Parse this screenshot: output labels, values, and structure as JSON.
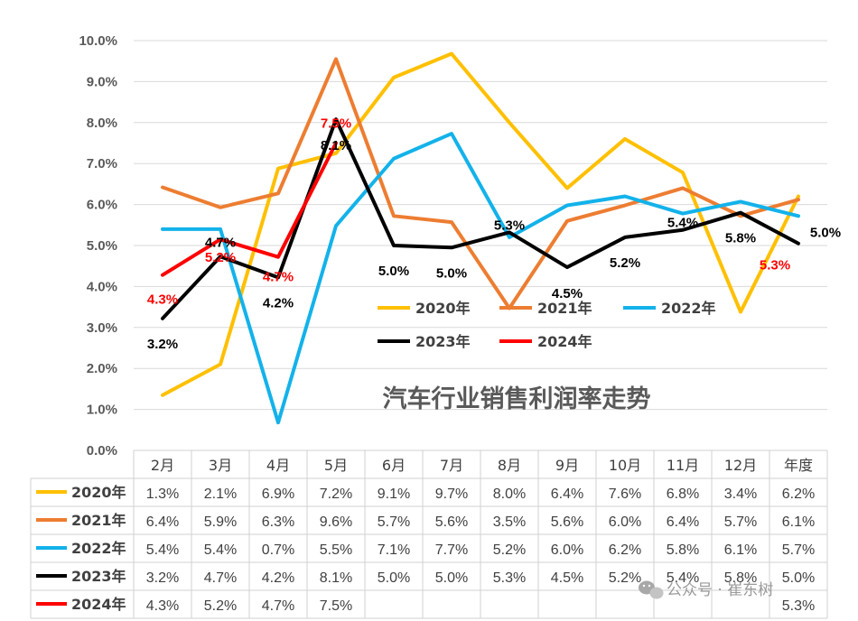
{
  "chart_data": {
    "type": "line",
    "title": "汽车行业销售利润率走势",
    "categories": [
      "2月",
      "3月",
      "4月",
      "5月",
      "6月",
      "7月",
      "8月",
      "9月",
      "10月",
      "11月",
      "12月",
      "年度"
    ],
    "y_ticks": [
      "0.0%",
      "1.0%",
      "2.0%",
      "3.0%",
      "4.0%",
      "5.0%",
      "6.0%",
      "7.0%",
      "8.0%",
      "9.0%",
      "10.0%"
    ],
    "ylim": [
      0,
      10
    ],
    "ylabel": "",
    "xlabel": "",
    "grid": true,
    "series": [
      {
        "name": "2020年",
        "color": "#FFC000",
        "values": [
          1.35,
          2.1,
          6.88,
          7.25,
          9.1,
          9.68,
          8.0,
          6.4,
          7.6,
          6.78,
          3.38,
          6.2
        ],
        "table": [
          "1.3%",
          "2.1%",
          "6.9%",
          "7.2%",
          "9.1%",
          "9.7%",
          "8.0%",
          "6.4%",
          "7.6%",
          "6.8%",
          "3.4%",
          "6.2%"
        ]
      },
      {
        "name": "2021年",
        "color": "#ED7D31",
        "values": [
          6.42,
          5.93,
          6.27,
          9.55,
          5.72,
          5.57,
          3.47,
          5.6,
          5.98,
          6.4,
          5.72,
          6.12
        ],
        "table": [
          "6.4%",
          "5.9%",
          "6.3%",
          "9.6%",
          "5.7%",
          "5.6%",
          "3.5%",
          "5.6%",
          "6.0%",
          "6.4%",
          "5.7%",
          "6.1%"
        ]
      },
      {
        "name": "2022年",
        "color": "#13B2EA",
        "values": [
          5.4,
          5.4,
          0.68,
          5.48,
          7.12,
          7.73,
          5.2,
          5.98,
          6.2,
          5.78,
          6.07,
          5.72
        ],
        "table": [
          "5.4%",
          "5.4%",
          "0.7%",
          "5.5%",
          "7.1%",
          "7.7%",
          "5.2%",
          "6.0%",
          "6.2%",
          "5.8%",
          "6.1%",
          "5.7%"
        ]
      },
      {
        "name": "2023年",
        "color": "#000000",
        "values": [
          3.22,
          4.73,
          4.22,
          8.08,
          5.0,
          4.95,
          5.32,
          4.47,
          5.2,
          5.38,
          5.8,
          5.05
        ],
        "table": [
          "3.2%",
          "4.7%",
          "4.2%",
          "8.1%",
          "5.0%",
          "5.0%",
          "5.3%",
          "4.5%",
          "5.2%",
          "5.4%",
          "5.8%",
          "5.0%"
        ],
        "labels": [
          "3.2%",
          "4.7%",
          "4.2%",
          "8.1%",
          "5.0%",
          "5.0%",
          "5.3%",
          "4.5%",
          "5.2%",
          "5.4%",
          "5.8%",
          "5.0%"
        ]
      },
      {
        "name": "2024年",
        "color": "#FF0000",
        "values": [
          4.28,
          5.15,
          4.72,
          7.5,
          null,
          null,
          null,
          null,
          null,
          null,
          null,
          null
        ],
        "table": [
          "4.3%",
          "5.2%",
          "4.7%",
          "7.5%",
          "",
          "",
          "",
          "",
          "",
          "",
          "",
          "5.3%"
        ],
        "labels": [
          "4.3%",
          "5.2%",
          "4.7%",
          "7.5%",
          "",
          "",
          "",
          "",
          "",
          "",
          "",
          "5.3%"
        ]
      }
    ]
  },
  "watermark": {
    "icon": "wechat-icon",
    "text": "公众号 · 崔东树"
  }
}
